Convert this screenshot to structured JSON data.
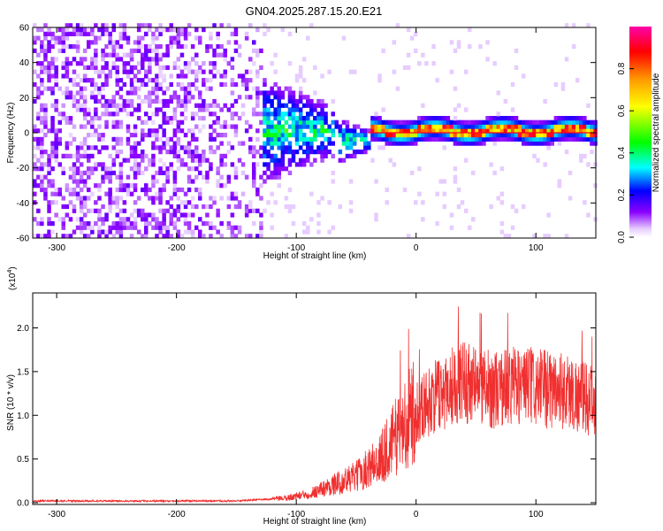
{
  "title": "GN04.2025.287.15.20.E21",
  "colors": {
    "snr_line": "#f03030",
    "frame": "#000000",
    "background": "#ffffff",
    "colormap": [
      "#ffffff",
      "#7a00ff",
      "#0000ff",
      "#00ffff",
      "#00ff00",
      "#ffff00",
      "#ff8000",
      "#ff0000",
      "#ff00a0"
    ]
  },
  "chart_data": [
    {
      "type": "heatmap",
      "name": "spectrogram",
      "xlabel": "Height of straight line (km)",
      "ylabel": "Frequency (Hz)",
      "xlim": [
        -320,
        150
      ],
      "ylim": [
        -60,
        60
      ],
      "x_ticks": [
        -300,
        -200,
        -100,
        0,
        100
      ],
      "y_ticks": [
        -60,
        -40,
        -20,
        0,
        20,
        40,
        60
      ],
      "colorbar": {
        "label": "Normalized spectral amplitude",
        "range": [
          0,
          1
        ],
        "ticks": [
          0.0,
          0.2,
          0.4,
          0.6,
          0.8
        ]
      },
      "description_features": {
        "noise_region_x": [
          -320,
          -130
        ],
        "transition_region_x": [
          -130,
          -40
        ],
        "signal_line_freq": 0
      }
    },
    {
      "type": "line",
      "name": "snr",
      "xlabel": "Height of straight line (km)",
      "ylabel": "SNR (10 * v/v)",
      "y_multiplier_label": "(x10",
      "y_multiplier_exp": "4",
      "y_multiplier_close": ")",
      "xlim": [
        -320,
        150
      ],
      "ylim": [
        -0.02,
        2.4
      ],
      "x_ticks": [
        -300,
        -200,
        -100,
        0,
        100
      ],
      "y_ticks": [
        0.0,
        0.5,
        1.0,
        1.5,
        2.0
      ],
      "series": [
        {
          "name": "SNR",
          "x": [
            -320,
            -150,
            -110,
            -90,
            -70,
            -50,
            -40,
            -30,
            -20,
            -10,
            0,
            10,
            20,
            30,
            40,
            50,
            60,
            70,
            80,
            90,
            100,
            110,
            120,
            130,
            140,
            150
          ],
          "y": [
            0.02,
            0.02,
            0.05,
            0.1,
            0.2,
            0.3,
            0.4,
            0.5,
            0.7,
            0.9,
            1.05,
            1.15,
            1.25,
            1.35,
            1.4,
            1.35,
            1.3,
            1.3,
            1.35,
            1.35,
            1.3,
            1.3,
            1.3,
            1.25,
            1.2,
            1.15
          ]
        }
      ]
    }
  ]
}
